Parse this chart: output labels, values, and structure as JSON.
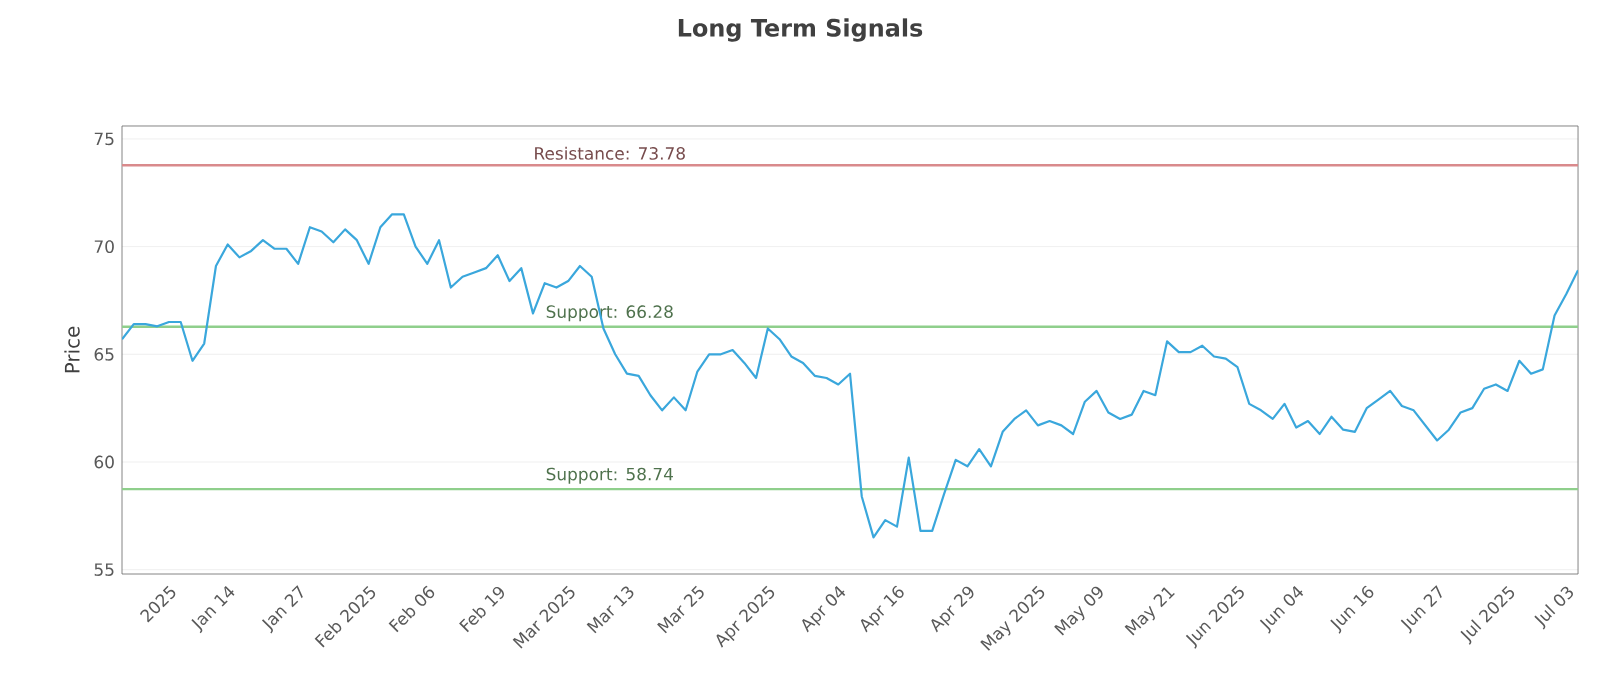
{
  "chart_data": {
    "type": "line",
    "title": "Long Term Signals",
    "ylabel": "Price",
    "categories": [
      null,
      null,
      null,
      null,
      "2025",
      null,
      null,
      null,
      null,
      "Jan 14",
      null,
      null,
      null,
      null,
      null,
      "Jan 27",
      null,
      null,
      null,
      null,
      null,
      "Feb 2025",
      null,
      null,
      null,
      null,
      "Feb 06",
      null,
      null,
      null,
      null,
      null,
      "Feb 19",
      null,
      null,
      null,
      null,
      null,
      "Mar 2025",
      null,
      null,
      null,
      null,
      "Mar 13",
      null,
      null,
      null,
      null,
      null,
      "Mar 25",
      null,
      null,
      null,
      null,
      null,
      "Apr 2025",
      null,
      null,
      null,
      null,
      null,
      "Apr 04",
      null,
      null,
      null,
      null,
      "Apr 16",
      null,
      null,
      null,
      null,
      null,
      "Apr 29",
      null,
      null,
      null,
      null,
      null,
      "May 2025",
      null,
      null,
      null,
      null,
      "May 09",
      null,
      null,
      null,
      null,
      null,
      "May 21",
      null,
      null,
      null,
      null,
      null,
      "Jun 2025",
      null,
      null,
      null,
      null,
      "Jun 04",
      null,
      null,
      null,
      null,
      null,
      "Jun 16",
      null,
      null,
      null,
      null,
      null,
      "Jun 27",
      null,
      null,
      null,
      null,
      null,
      "Jul 2025",
      null,
      null,
      null,
      null,
      "Jul 03",
      null
    ],
    "series": [
      {
        "color": "#3aa7dc",
        "values": [
          65.7,
          66.4,
          66.4,
          66.3,
          66.5,
          66.5,
          64.7,
          65.5,
          69.1,
          70.1,
          69.5,
          69.8,
          70.3,
          69.9,
          69.9,
          69.2,
          70.9,
          70.7,
          70.2,
          70.8,
          70.3,
          69.2,
          70.9,
          71.5,
          71.5,
          70.0,
          69.2,
          70.3,
          68.1,
          68.6,
          68.8,
          69.0,
          69.6,
          68.4,
          69.0,
          66.9,
          68.3,
          68.1,
          68.4,
          69.1,
          68.6,
          66.2,
          65.0,
          64.1,
          64.0,
          63.1,
          62.4,
          63.0,
          62.4,
          64.2,
          65.0,
          65.0,
          65.2,
          64.6,
          63.9,
          66.2,
          65.7,
          64.9,
          64.6,
          64.0,
          63.9,
          63.6,
          64.1,
          58.4,
          56.5,
          57.3,
          57.0,
          60.2,
          56.8,
          56.8,
          58.5,
          60.1,
          59.8,
          60.6,
          59.8,
          61.4,
          62.0,
          62.4,
          61.7,
          61.9,
          61.7,
          61.3,
          62.8,
          63.3,
          62.3,
          62.0,
          62.2,
          63.3,
          63.1,
          65.6,
          65.1,
          65.1,
          65.4,
          64.9,
          64.8,
          64.4,
          62.7,
          62.4,
          62.0,
          62.7,
          61.6,
          61.9,
          61.3,
          62.1,
          61.5,
          61.4,
          62.5,
          62.9,
          63.3,
          62.6,
          62.4,
          61.7,
          61.0,
          61.5,
          62.3,
          62.5,
          63.4,
          63.6,
          63.3,
          64.7,
          64.1,
          64.3,
          66.8,
          67.8,
          68.9
        ]
      }
    ],
    "ylim": [
      54.8,
      75.6
    ],
    "yticks": [
      55,
      60,
      65,
      70,
      75
    ],
    "grid": "y",
    "ref_lines": [
      {
        "axis": "y",
        "value": 73.78,
        "label": "Resistance: 73.78",
        "color": "#d98a8c"
      },
      {
        "axis": "y",
        "value": 66.28,
        "label": "Support: 66.28",
        "color": "#8fcf8c"
      },
      {
        "axis": "y",
        "value": 58.74,
        "label": "Support: 58.74",
        "color": "#8fcf8c"
      }
    ]
  }
}
